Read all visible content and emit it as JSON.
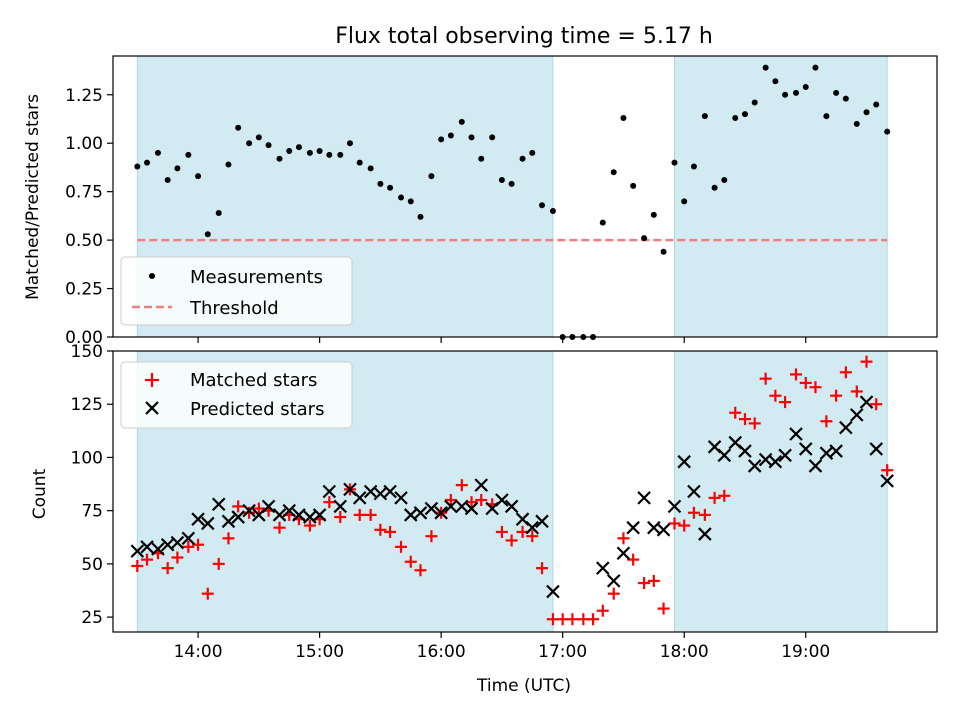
{
  "figure_title": "Flux total observing time = 5.17 h",
  "colors": {
    "shade": "#add8e6",
    "measurement": "#000000",
    "threshold": "#f08080",
    "matched": "#ff0000",
    "predicted": "#000000"
  },
  "chart_data": [
    {
      "type": "scatter",
      "title": "Flux total observing time = 5.17 h",
      "xlabel": "",
      "ylabel": "Matched/Predicted stars",
      "x_unit": "hours (UTC)",
      "xlim": [
        13.3,
        20.08
      ],
      "ylim": [
        0,
        1.45
      ],
      "yticks": [
        "0.00",
        "0.25",
        "0.50",
        "0.75",
        "1.00",
        "1.25"
      ],
      "ytick_values": [
        0,
        0.25,
        0.5,
        0.75,
        1.0,
        1.25
      ],
      "xticks_values": [
        14,
        15,
        16,
        17,
        18,
        19
      ],
      "shaded_spans": [
        [
          13.5,
          16.92
        ],
        [
          17.92,
          19.67
        ]
      ],
      "threshold": 0.5,
      "legend_position": "lower-left",
      "legend": [
        "Measurements",
        "Threshold"
      ],
      "series": [
        {
          "name": "Measurements",
          "marker": "dot",
          "x": [
            13.5,
            13.58,
            13.67,
            13.75,
            13.83,
            13.92,
            14.0,
            14.08,
            14.17,
            14.25,
            14.33,
            14.42,
            14.5,
            14.58,
            14.67,
            14.75,
            14.83,
            14.92,
            15.0,
            15.08,
            15.17,
            15.25,
            15.33,
            15.42,
            15.5,
            15.58,
            15.67,
            15.75,
            15.83,
            15.92,
            16.0,
            16.08,
            16.17,
            16.25,
            16.33,
            16.42,
            16.5,
            16.58,
            16.67,
            16.75,
            16.83,
            16.92,
            17.0,
            17.08,
            17.17,
            17.25,
            17.33,
            17.42,
            17.5,
            17.58,
            17.67,
            17.75,
            17.83,
            17.92,
            18.0,
            18.08,
            18.17,
            18.25,
            18.33,
            18.42,
            18.5,
            18.58,
            18.67,
            18.75,
            18.83,
            18.92,
            19.0,
            19.08,
            19.17,
            19.25,
            19.33,
            19.42,
            19.5,
            19.58,
            19.67
          ],
          "y": [
            0.88,
            0.9,
            0.95,
            0.81,
            0.87,
            0.94,
            0.83,
            0.53,
            0.64,
            0.89,
            1.08,
            1.0,
            1.03,
            0.99,
            0.92,
            0.96,
            0.98,
            0.95,
            0.96,
            0.94,
            0.94,
            1.0,
            0.9,
            0.87,
            0.79,
            0.77,
            0.72,
            0.7,
            0.62,
            0.83,
            1.02,
            1.04,
            1.11,
            1.03,
            0.92,
            1.03,
            0.81,
            0.79,
            0.92,
            0.95,
            0.68,
            0.65,
            0.0,
            0.0,
            0.0,
            0.0,
            0.59,
            0.85,
            1.13,
            0.78,
            0.51,
            0.63,
            0.44,
            0.9,
            0.7,
            0.88,
            1.14,
            0.77,
            0.81,
            1.13,
            1.15,
            1.21,
            1.39,
            1.32,
            1.25,
            1.26,
            1.29,
            1.39,
            1.14,
            1.26,
            1.23,
            1.1,
            1.16,
            1.2,
            1.06
          ]
        },
        {
          "name": "Threshold",
          "type": "line",
          "style": "dashed",
          "x": [
            13.5,
            19.67
          ],
          "y": [
            0.5,
            0.5
          ]
        }
      ]
    },
    {
      "type": "scatter",
      "title": "",
      "xlabel": "Time (UTC)",
      "ylabel": "Count",
      "x_unit": "hours (UTC)",
      "xlim": [
        13.3,
        20.08
      ],
      "ylim": [
        18,
        150
      ],
      "yticks": [
        "25",
        "50",
        "75",
        "100",
        "125",
        "150"
      ],
      "ytick_values": [
        25,
        50,
        75,
        100,
        125,
        150
      ],
      "xticks": [
        "14:00",
        "15:00",
        "16:00",
        "17:00",
        "18:00",
        "19:00"
      ],
      "xticks_values": [
        14,
        15,
        16,
        17,
        18,
        19
      ],
      "shaded_spans": [
        [
          13.5,
          16.92
        ],
        [
          17.92,
          19.67
        ]
      ],
      "legend_position": "upper-left",
      "legend": [
        "Matched stars",
        "Predicted stars"
      ],
      "series": [
        {
          "name": "Matched stars",
          "marker": "plus",
          "x": [
            13.5,
            13.58,
            13.67,
            13.75,
            13.83,
            13.92,
            14.0,
            14.08,
            14.17,
            14.25,
            14.33,
            14.42,
            14.5,
            14.58,
            14.67,
            14.75,
            14.83,
            14.92,
            15.0,
            15.08,
            15.17,
            15.25,
            15.33,
            15.42,
            15.5,
            15.58,
            15.67,
            15.75,
            15.83,
            15.92,
            16.0,
            16.08,
            16.17,
            16.25,
            16.33,
            16.42,
            16.5,
            16.58,
            16.67,
            16.75,
            16.83,
            16.92,
            17.0,
            17.08,
            17.17,
            17.25,
            17.33,
            17.42,
            17.5,
            17.58,
            17.67,
            17.75,
            17.83,
            17.92,
            18.0,
            18.08,
            18.17,
            18.25,
            18.33,
            18.42,
            18.5,
            18.58,
            18.67,
            18.75,
            18.83,
            18.92,
            19.0,
            19.08,
            19.17,
            19.25,
            19.33,
            19.42,
            19.5,
            19.58,
            19.67
          ],
          "y": [
            49,
            52,
            55,
            48,
            53,
            58,
            59,
            36,
            50,
            62,
            77,
            74,
            76,
            75,
            67,
            73,
            71,
            68,
            71,
            79,
            72,
            85,
            73,
            73,
            66,
            65,
            58,
            51,
            47,
            63,
            74,
            80,
            87,
            79,
            80,
            78,
            65,
            61,
            65,
            63,
            48,
            24,
            24,
            24,
            24,
            24,
            28,
            36,
            62,
            52,
            41,
            42,
            29,
            69,
            68,
            74,
            73,
            81,
            82,
            121,
            118,
            116,
            137,
            129,
            126,
            139,
            135,
            133,
            117,
            129,
            140,
            131,
            145,
            125,
            94
          ]
        },
        {
          "name": "Predicted stars",
          "marker": "x",
          "x": [
            13.5,
            13.58,
            13.67,
            13.75,
            13.83,
            13.92,
            14.0,
            14.08,
            14.17,
            14.25,
            14.33,
            14.42,
            14.5,
            14.58,
            14.67,
            14.75,
            14.83,
            14.92,
            15.0,
            15.08,
            15.17,
            15.25,
            15.33,
            15.42,
            15.5,
            15.58,
            15.67,
            15.75,
            15.83,
            15.92,
            16.0,
            16.08,
            16.17,
            16.25,
            16.33,
            16.42,
            16.5,
            16.58,
            16.67,
            16.75,
            16.83,
            16.92,
            17.33,
            17.42,
            17.5,
            17.58,
            17.67,
            17.75,
            17.83,
            17.92,
            18.0,
            18.08,
            18.17,
            18.25,
            18.33,
            18.42,
            18.5,
            18.58,
            18.67,
            18.75,
            18.83,
            18.92,
            19.0,
            19.08,
            19.17,
            19.25,
            19.33,
            19.42,
            19.5,
            19.58,
            19.67
          ],
          "y": [
            56,
            58,
            57,
            59,
            60,
            62,
            71,
            69,
            78,
            70,
            72,
            75,
            73,
            77,
            73,
            75,
            73,
            72,
            73,
            84,
            77,
            85,
            81,
            84,
            83,
            84,
            81,
            73,
            74,
            76,
            74,
            77,
            77,
            76,
            87,
            76,
            80,
            77,
            71,
            67,
            70,
            37,
            48,
            42,
            55,
            67,
            81,
            67,
            66,
            77,
            98,
            84,
            64,
            105,
            101,
            107,
            103,
            96,
            99,
            98,
            101,
            111,
            104,
            96,
            102,
            103,
            114,
            120,
            126,
            104,
            89
          ]
        }
      ]
    }
  ]
}
